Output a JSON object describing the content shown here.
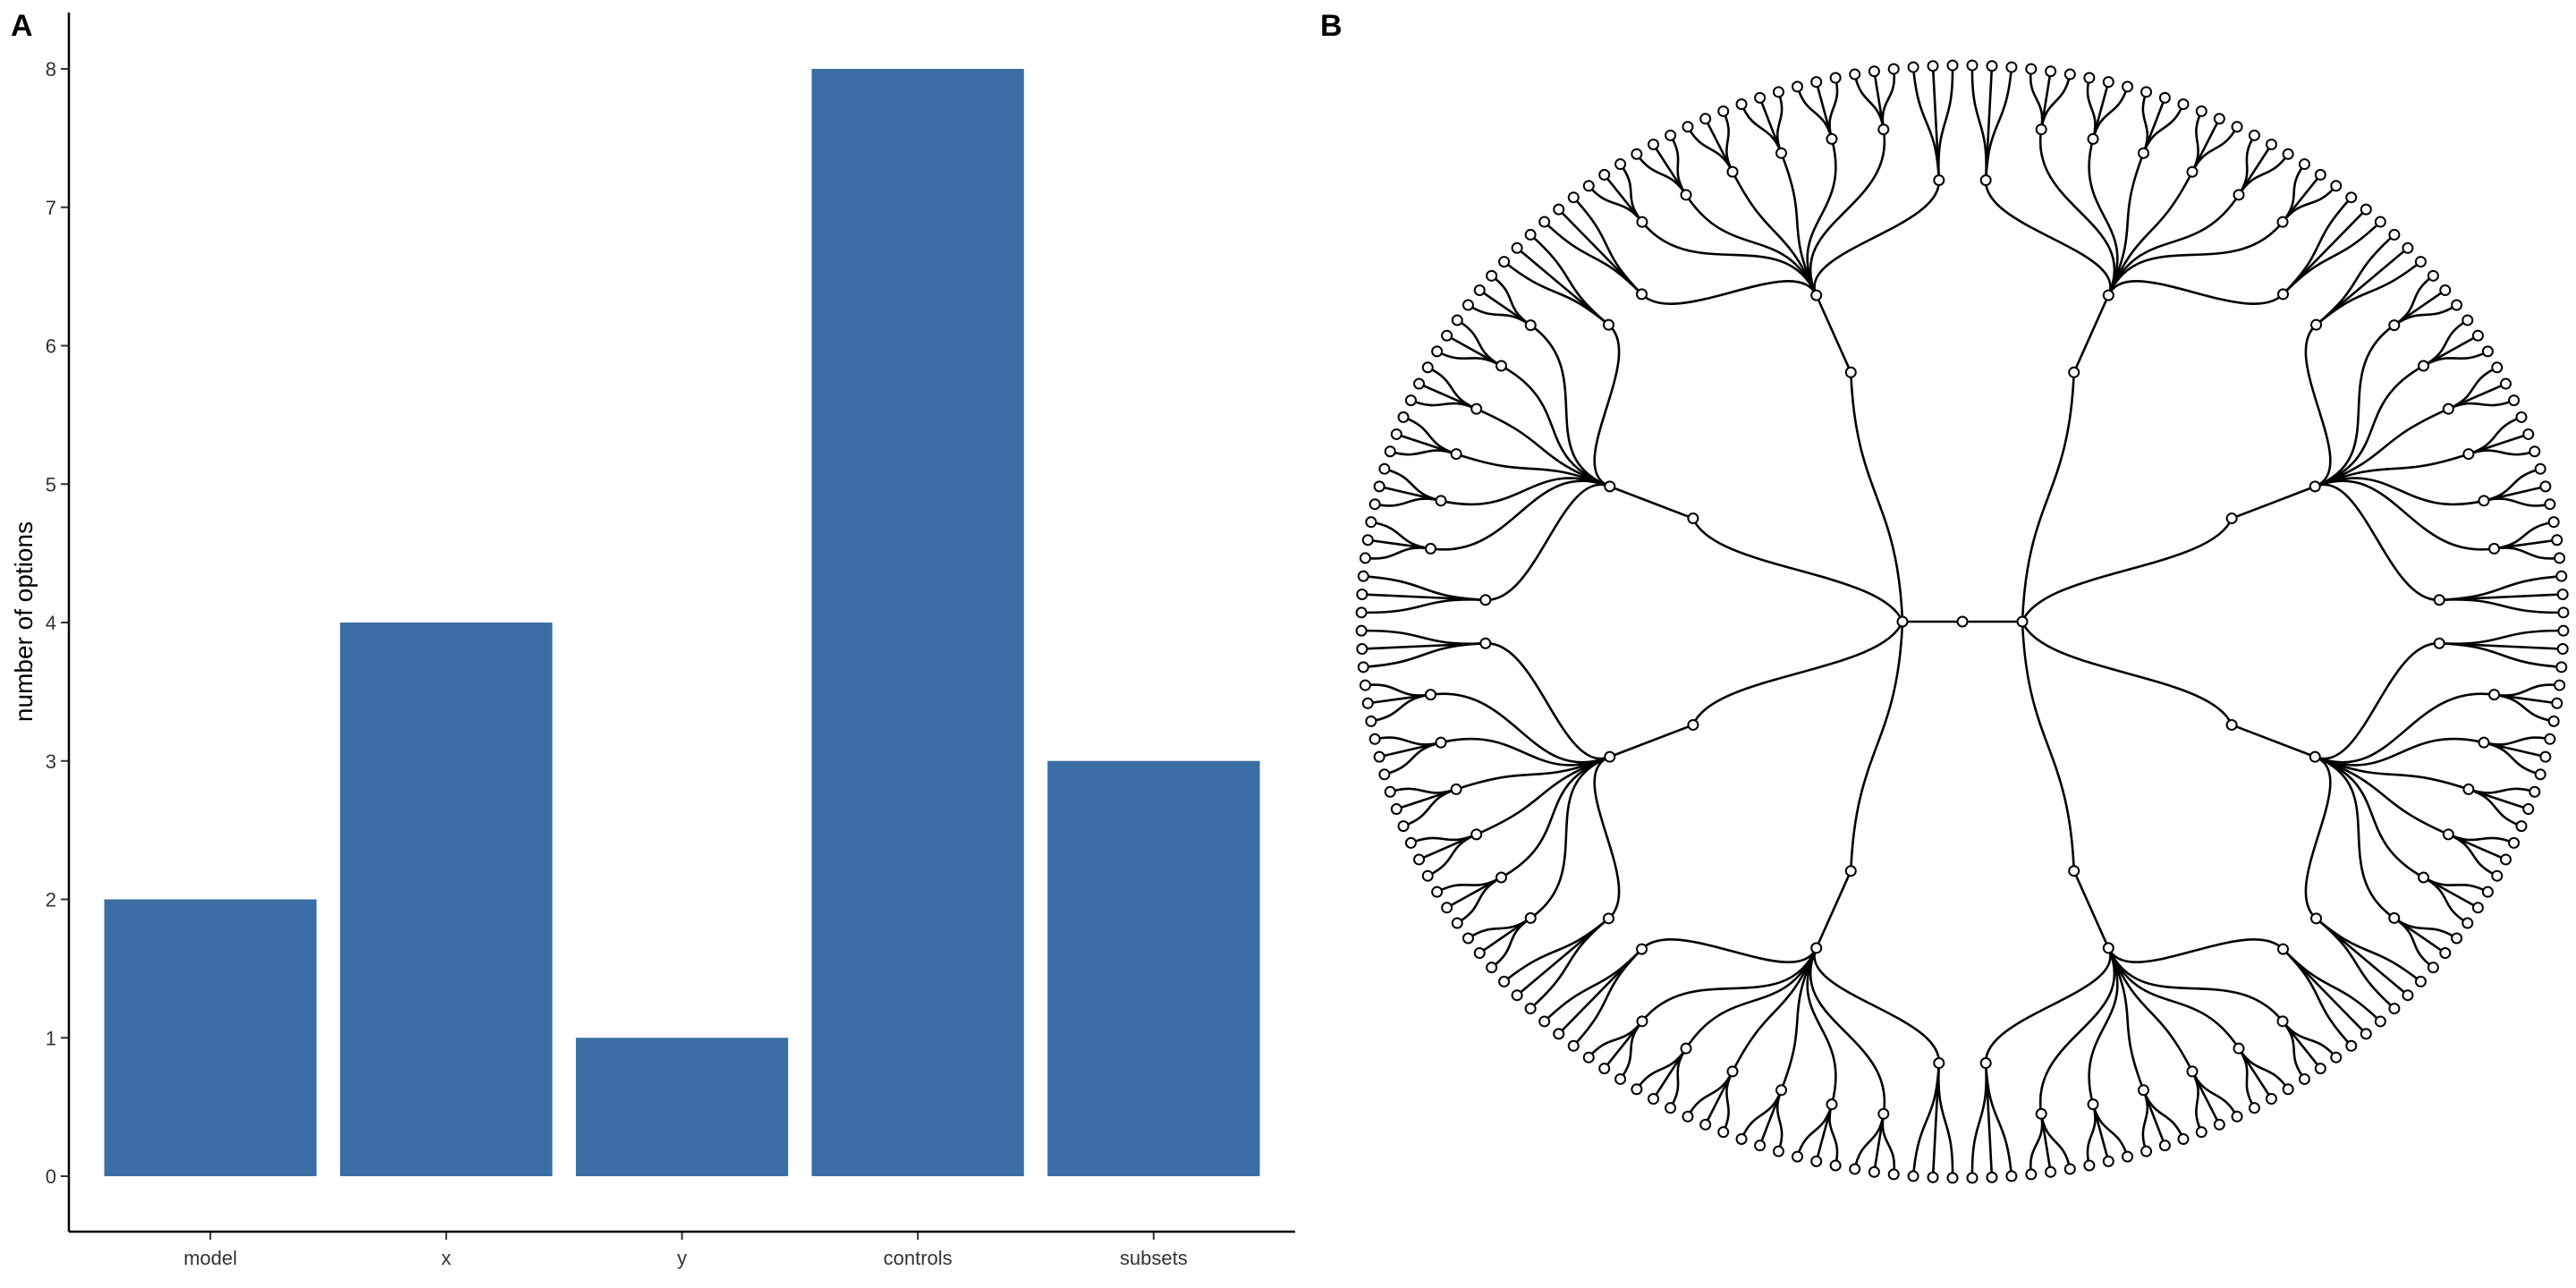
{
  "panels": {
    "a": "A",
    "b": "B"
  },
  "chart_data": [
    {
      "type": "bar",
      "categories": [
        "model",
        "x",
        "y",
        "controls",
        "subsets"
      ],
      "values": [
        2,
        4,
        1,
        8,
        3
      ],
      "ylabel": "number of options",
      "xlabel": "",
      "yticks": [
        0,
        1,
        2,
        3,
        4,
        5,
        6,
        7,
        8
      ],
      "ylim": [
        0,
        8
      ],
      "grid": false,
      "bar_color": "#3A6EA5"
    },
    {
      "type": "tree",
      "layout": "radial dendrogram",
      "levels": [
        {
          "level": 0,
          "children_per_node": 2
        },
        {
          "level": 1,
          "children_per_node": 4
        },
        {
          "level": 2,
          "children_per_node": 1
        },
        {
          "level": 3,
          "children_per_node": 8
        },
        {
          "level": 4,
          "children_per_node": 3
        }
      ],
      "node_count": {
        "depth_1": 2,
        "depth_2": 8,
        "depth_3": 8,
        "depth_4": 64,
        "leaves": 192
      },
      "node_color": "#ffffff",
      "edge_color": "#000000"
    }
  ]
}
